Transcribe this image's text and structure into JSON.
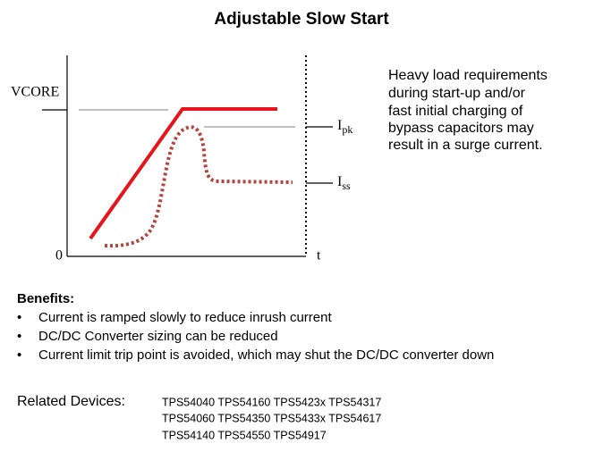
{
  "header": {
    "title": "Adjustable Slow Start"
  },
  "diagram": {
    "y_label": "VCORE",
    "origin_label": "0",
    "x_label": "t",
    "ipk": {
      "base": "I",
      "sub": "pk"
    },
    "iss": {
      "base": "I",
      "sub": "ss"
    }
  },
  "description": {
    "lines": [
      "Heavy load requirements",
      "during start-up and/or",
      "fast initial charging of",
      "bypass capacitors may",
      "result in a surge current."
    ]
  },
  "benefits": {
    "heading": "Benefits:",
    "items": [
      "Current is ramped  slowly  to reduce inrush current",
      "DC/DC Converter  sizing can be reduced",
      "Current limit trip point is avoided,  which may shut the DC/DC converter  down"
    ]
  },
  "related": {
    "label": "Related Devices:",
    "lines": [
      "TPS54040 TPS54160 TPS5423x TPS54317",
      "TPS54060 TPS54350 TPS5433x TPS54617",
      "TPS54140 TPS54550 TPS54917"
    ]
  }
}
